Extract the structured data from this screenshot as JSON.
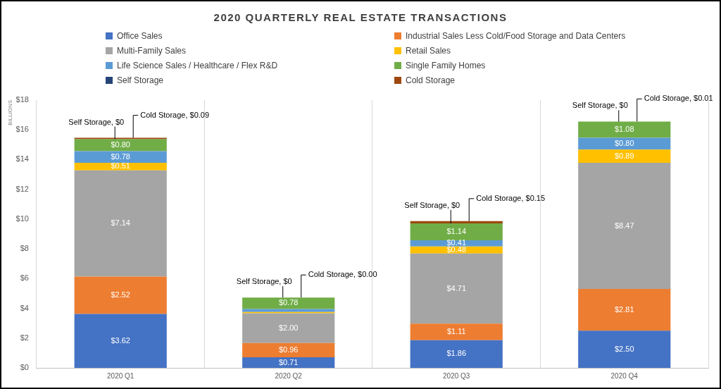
{
  "chart_data": {
    "type": "bar",
    "title": "2020 QUARTERLY REAL ESTATE TRANSACTIONS",
    "y_label": "BILLIONS",
    "categories": [
      "2020 Q1",
      "2020 Q2",
      "2020 Q3",
      "2020 Q4"
    ],
    "stacked": true,
    "data_labels": true,
    "grid": true,
    "legend": "top",
    "ylim": [
      0,
      18
    ],
    "yticks": [
      {
        "value": 0,
        "label": "$0"
      },
      {
        "value": 2,
        "label": "$2"
      },
      {
        "value": 4,
        "label": "$4"
      },
      {
        "value": 6,
        "label": "$6"
      },
      {
        "value": 8,
        "label": "$8"
      },
      {
        "value": 10,
        "label": "$10"
      },
      {
        "value": 12,
        "label": "$12"
      },
      {
        "value": 14,
        "label": "$14"
      },
      {
        "value": 16,
        "label": "$16"
      },
      {
        "value": 18,
        "label": "$18"
      }
    ],
    "series": [
      {
        "name": "Office Sales",
        "color": "#4472c4",
        "values": [
          3.62,
          0.71,
          1.86,
          2.5
        ],
        "value_labels": [
          "$3.62",
          "$0.71",
          "$1.86",
          "$2.50"
        ]
      },
      {
        "name": "Industrial Sales Less Cold/Food Storage and Data Centers",
        "color": "#ed7d31",
        "values": [
          2.52,
          0.96,
          1.11,
          2.81
        ],
        "value_labels": [
          "$2.52",
          "$0.96",
          "$1.11",
          "$2.81"
        ]
      },
      {
        "name": "Multi-Family Sales",
        "color": "#a5a5a5",
        "values": [
          7.14,
          2.0,
          4.71,
          8.47
        ],
        "value_labels": [
          "$7.14",
          "$2.00",
          "$4.71",
          "$8.47"
        ]
      },
      {
        "name": "Retail Sales",
        "color": "#ffc000",
        "values": [
          0.51,
          0.08,
          0.48,
          0.89
        ],
        "value_labels": [
          "$0.51",
          null,
          "$0.48",
          "$0.89"
        ]
      },
      {
        "name": "Life Science Sales / Healthcare / Flex R&D",
        "color": "#5b9bd5",
        "values": [
          0.78,
          0.2,
          0.41,
          0.8
        ],
        "value_labels": [
          "$0.78",
          null,
          "$0.41",
          "$0.80"
        ]
      },
      {
        "name": "Single Family Homes",
        "color": "#70ad47",
        "values": [
          0.8,
          0.78,
          1.14,
          1.08
        ],
        "value_labels": [
          "$0.80",
          "$0.78",
          "$1.14",
          "$1.08"
        ]
      },
      {
        "name": "Self Storage",
        "color": "#264478",
        "values": [
          0,
          0,
          0,
          0
        ],
        "value_labels": [
          "Self Storage, $0",
          "Self Storage, $0",
          "Self Storage, $0",
          "Self Storage, $0"
        ]
      },
      {
        "name": "Cold Storage",
        "color": "#9e480e",
        "values": [
          0.09,
          0,
          0.15,
          0.01
        ],
        "value_labels": [
          "Cold Storage, $0.09",
          "Cold Storage, $0.00",
          "Cold Storage, $0.15",
          "Cold Storage, $0.01"
        ]
      }
    ]
  }
}
